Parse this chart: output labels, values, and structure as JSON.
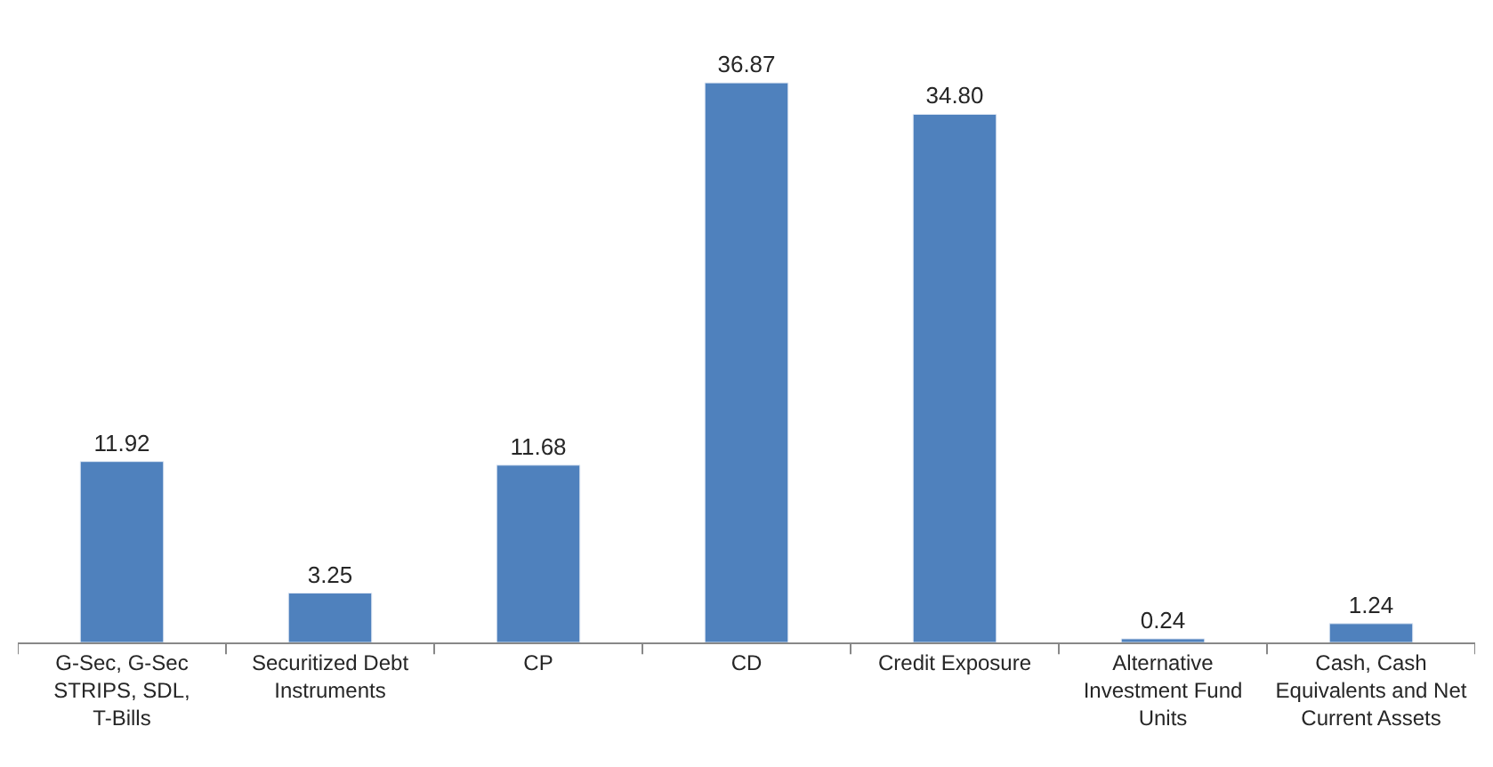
{
  "chart_data": {
    "type": "bar",
    "categories": [
      "G-Sec, G-Sec STRIPS, SDL, T-Bills",
      "Securitized Debt Instruments",
      "CP",
      "CD",
      "Credit Exposure",
      "Alternative Investment Fund Units",
      "Cash, Cash Equivalents and Net Current Assets"
    ],
    "values": [
      11.92,
      3.25,
      11.68,
      36.87,
      34.8,
      0.24,
      1.24
    ],
    "value_labels": [
      "11.92",
      "3.25",
      "11.68",
      "36.87",
      "34.80",
      "0.24",
      "1.24"
    ],
    "color": "#4f81bd"
  }
}
